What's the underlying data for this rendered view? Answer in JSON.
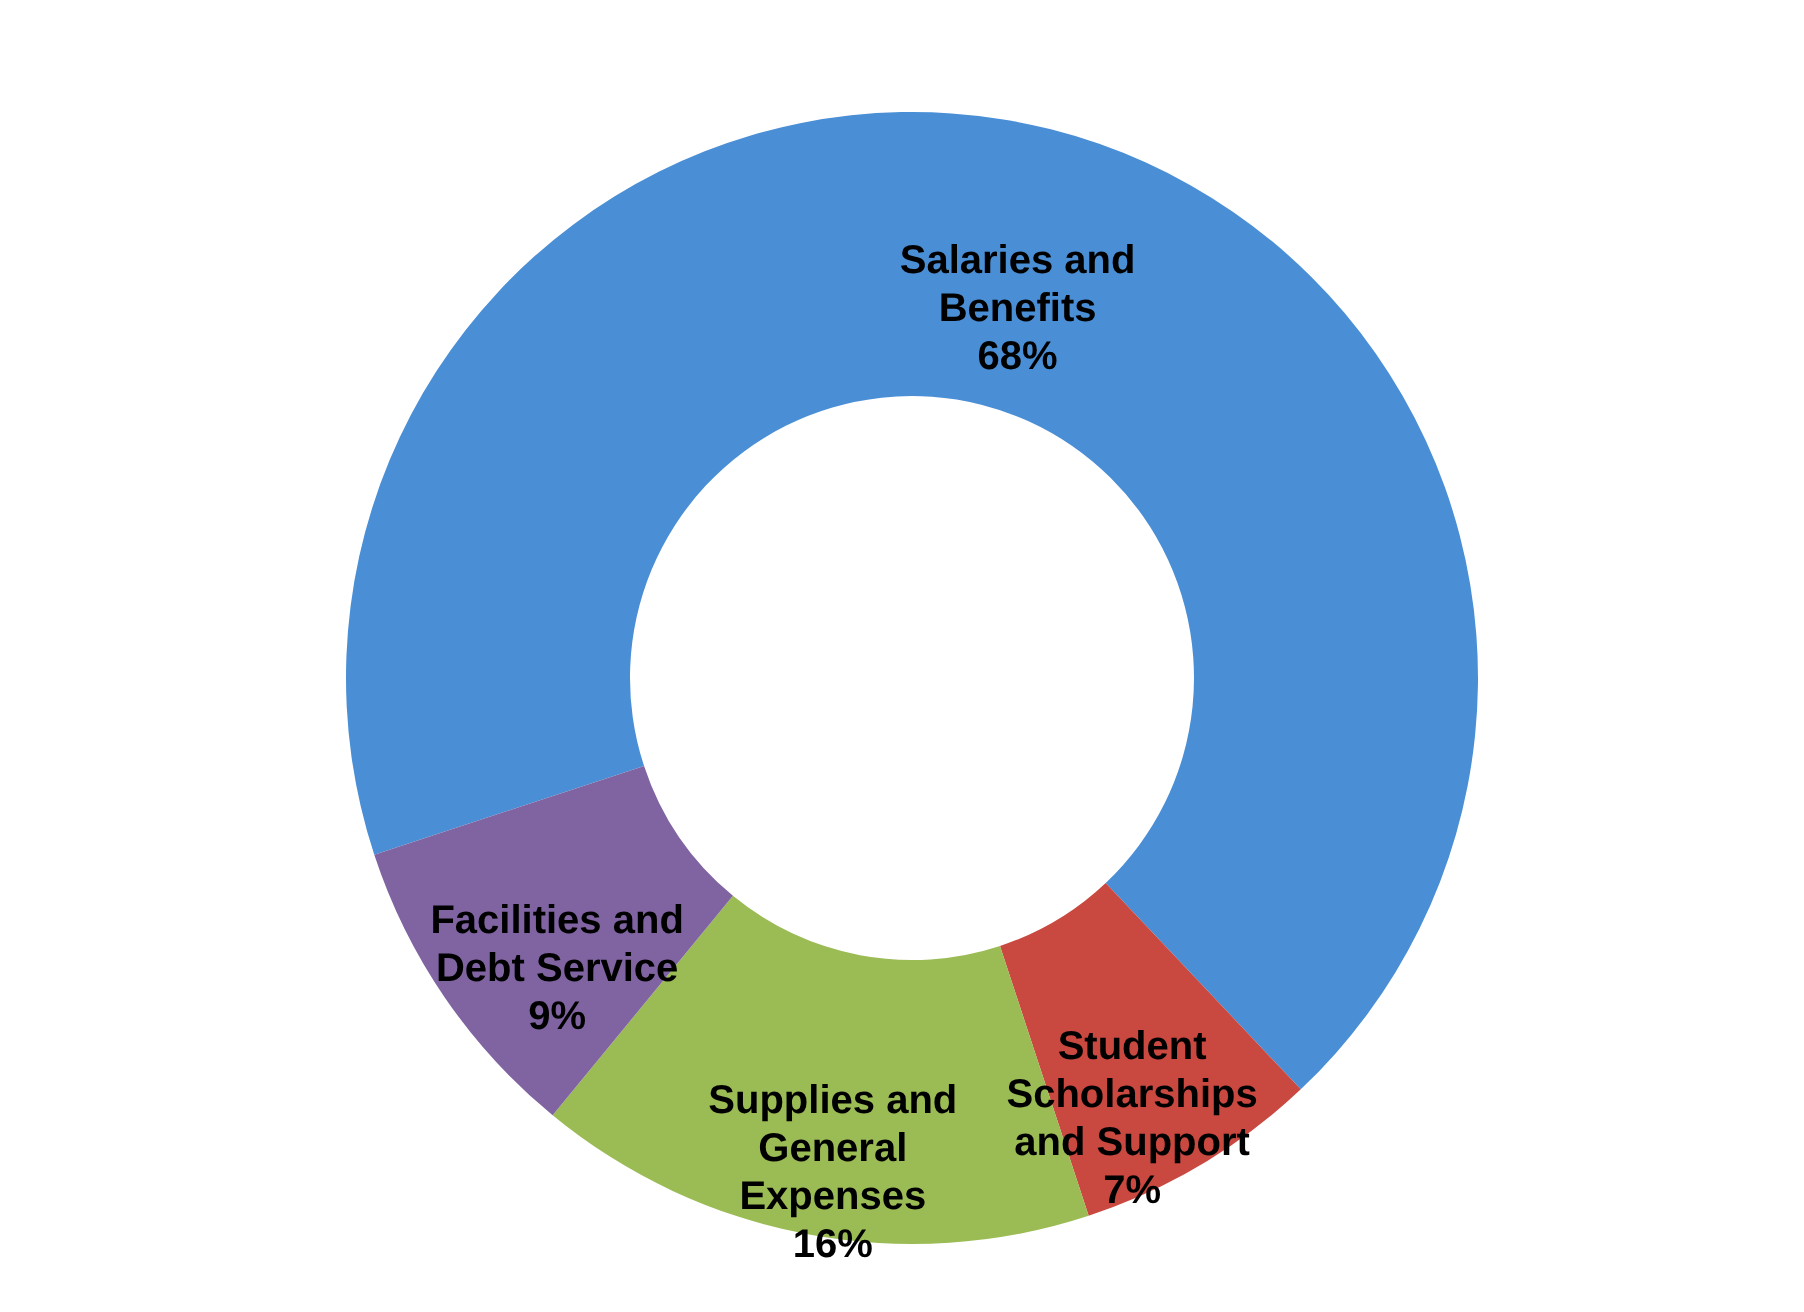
{
  "chart_data": {
    "type": "donut",
    "categories": [
      "Salaries and Benefits",
      "Student Scholarships and Support",
      "Supplies and General Expenses",
      "Facilities and Debt Service"
    ],
    "values": [
      68,
      7,
      16,
      9
    ],
    "value_labels": [
      "68%",
      "7%",
      "16%",
      "9%"
    ],
    "colors": [
      "#4a8fd6",
      "#c9483f",
      "#9bbb54",
      "#8064a2"
    ]
  }
}
